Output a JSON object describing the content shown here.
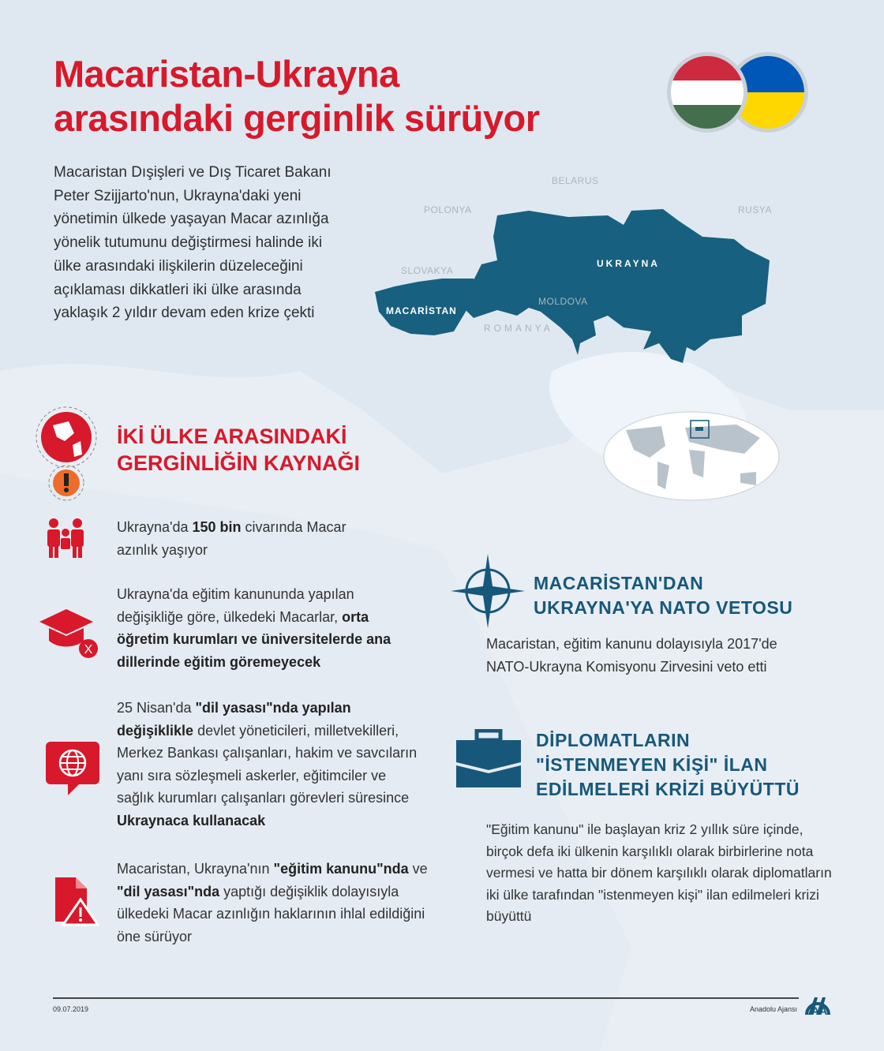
{
  "title": {
    "line1": "Macaristan-Ukrayna",
    "line2": "arasındaki gerginlik sürüyor"
  },
  "intro": "Macaristan Dışişleri ve Dış Ticaret Bakanı Peter Szijjarto'nun, Ukrayna'daki yeni yönetimin ülkede yaşayan Macar azınlığa yönelik tutumunu değiştirmesi halinde iki ülke arasındaki ilişkilerin düzeleceğini açıklaması dikkatleri iki ülke arasında yaklaşık 2 yıldır devam eden krize çekti",
  "flags": {
    "hungary": [
      "#cd2a3e",
      "#ffffff",
      "#436f4d"
    ],
    "ukraine": [
      "#0057b7",
      "#ffd700"
    ]
  },
  "map": {
    "labels": {
      "belarus": "BELARUS",
      "polonya": "POLONYA",
      "rusya": "RUSYA",
      "slovakya": "SLOVAKYA",
      "moldova": "MOLDOVA",
      "romanya": "ROMANYA",
      "ukrayna": "UKRAYNA",
      "macaristan": "MACARİSTAN"
    },
    "highlight_color": "#17607f"
  },
  "left": {
    "heading": {
      "line1": "İKİ ÜLKE ARASINDAKİ",
      "line2": "GERGİNLİĞİN KAYNAĞI"
    },
    "items": [
      {
        "icon": "family-icon",
        "pre": "Ukrayna'da ",
        "bold": "150 bin",
        "post": " civarında Macar azınlık yaşıyor"
      },
      {
        "icon": "graduation-cap-x-icon",
        "pre": "Ukrayna'da eğitim kanununda yapılan değişikliğe göre, ülkedeki Macarlar, ",
        "bold": "orta öğretim kurumları ve üniversitelerde ana dillerinde eğitim göremeyecek"
      },
      {
        "icon": "globe-speech-icon",
        "pre": "25 Nisan'da ",
        "bold": "\"dil yasası\"nda yapılan değişiklikle",
        "mid": " devlet yöneticileri, milletvekilleri, Merkez Bankası çalışanları, hakim ve savcıların yanı sıra sözleşmeli askerler, eğitimciler ve sağlık kurumları çalışanları görevleri süresince ",
        "bold2": "Ukraynaca kullanacak"
      },
      {
        "icon": "document-warning-icon",
        "pre": "Macaristan, Ukrayna'nın ",
        "bold": "\"eğitim kanunu\"nda",
        "mid": " ve ",
        "bold2": "\"dil yasası\"nda",
        "post": " yaptığı değişiklik dolayısıyla ülkedeki Macar azınlığın haklarının ihlal edildiğini öne sürüyor"
      }
    ]
  },
  "nato": {
    "heading": {
      "line1": "MACARİSTAN'DAN",
      "line2": "UKRAYNA'YA NATO VETOSU"
    },
    "text": "Macaristan, eğitim kanunu dolayısıyla 2017'de NATO-Ukrayna Komisyonu Zirvesini veto etti"
  },
  "diplomats": {
    "heading": {
      "line1": "DİPLOMATLARIN",
      "line2": "\"İSTENMEYEN KİŞİ\" İLAN",
      "line3": "EDİLMELERİ KRİZİ BÜYÜTTÜ"
    },
    "text": "\"Eğitim kanunu\" ile başlayan kriz 2 yıllık süre içinde, birçok defa iki ülkenin karşılıklı olarak birbirlerine nota vermesi ve hatta bir dönem karşılıklı olarak diplomatların iki ülke tarafından \"istenmeyen kişi\" ilan edilmeleri krizi büyüttü"
  },
  "footer": {
    "date": "09.07.2019",
    "agency": "Anadolu Ajansı"
  },
  "colors": {
    "red": "#d7192b",
    "blue": "#17587a"
  }
}
